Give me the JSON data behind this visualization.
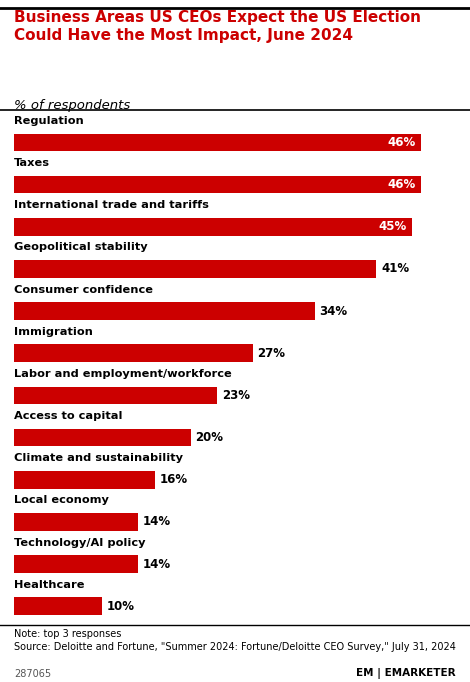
{
  "title": "Business Areas US CEOs Expect the US Election\nCould Have the Most Impact, June 2024",
  "subtitle": "% of respondents",
  "categories": [
    "Regulation",
    "Taxes",
    "International trade and tariffs",
    "Geopolitical stability",
    "Consumer confidence",
    "Immigration",
    "Labor and employment/workforce",
    "Access to capital",
    "Climate and sustainability",
    "Local economy",
    "Technology/AI policy",
    "Healthcare"
  ],
  "values": [
    46,
    46,
    45,
    41,
    34,
    27,
    23,
    20,
    16,
    14,
    14,
    10
  ],
  "bar_color": "#cc0000",
  "bg_color": "#ffffff",
  "text_color": "#000000",
  "title_color": "#cc0000",
  "note": "Note: top 3 responses\nSource: Deloitte and Fortune, \"Summer 2024: Fortune/Deloitte CEO Survey,\" July 31, 2024",
  "footer_id": "287065",
  "xlim": [
    0,
    50
  ]
}
